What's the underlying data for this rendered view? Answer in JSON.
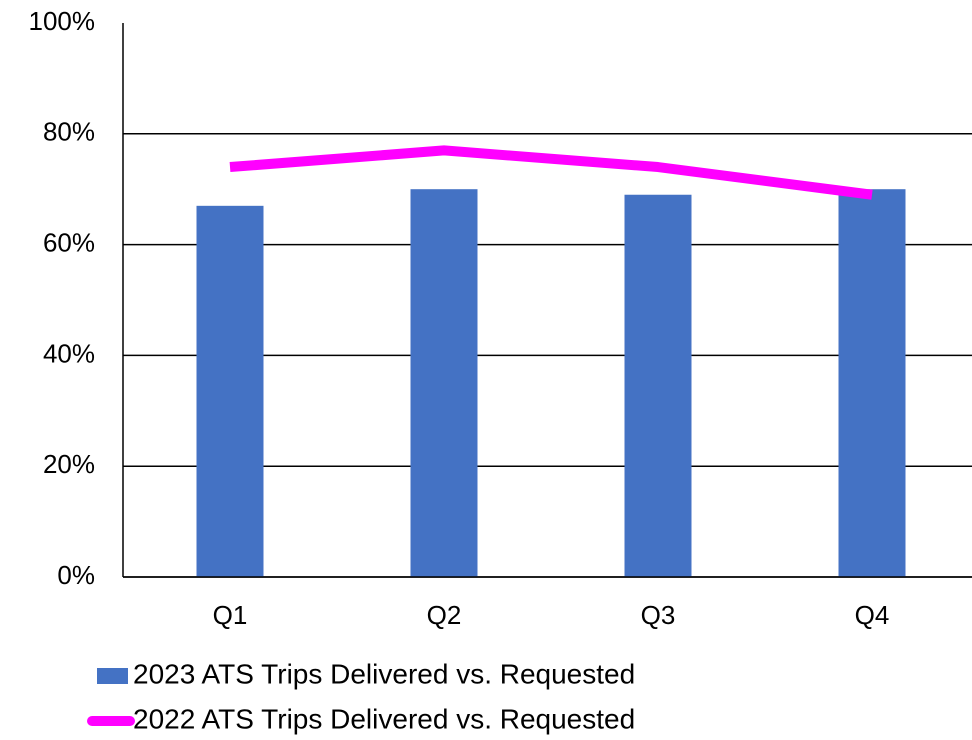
{
  "chart_data": {
    "type": "bar",
    "categories": [
      "Q1",
      "Q2",
      "Q3",
      "Q4"
    ],
    "series": [
      {
        "name": "2023 ATS Trips Delivered vs. Requested",
        "type": "bar",
        "color": "#4472c4",
        "values": [
          67,
          70,
          69,
          70
        ]
      },
      {
        "name": "2022 ATS Trips Delivered vs. Requested",
        "type": "line",
        "color": "#ff00ff",
        "values": [
          74,
          77,
          74,
          69
        ]
      }
    ],
    "ylim": [
      0,
      100
    ],
    "yticks": [
      {
        "value": 0,
        "label": "0%"
      },
      {
        "value": 20,
        "label": "20%"
      },
      {
        "value": 40,
        "label": "40%"
      },
      {
        "value": 60,
        "label": "60%"
      },
      {
        "value": 80,
        "label": "80%"
      },
      {
        "value": 100,
        "label": "100%"
      }
    ],
    "grid": true,
    "legend": "bottom"
  }
}
